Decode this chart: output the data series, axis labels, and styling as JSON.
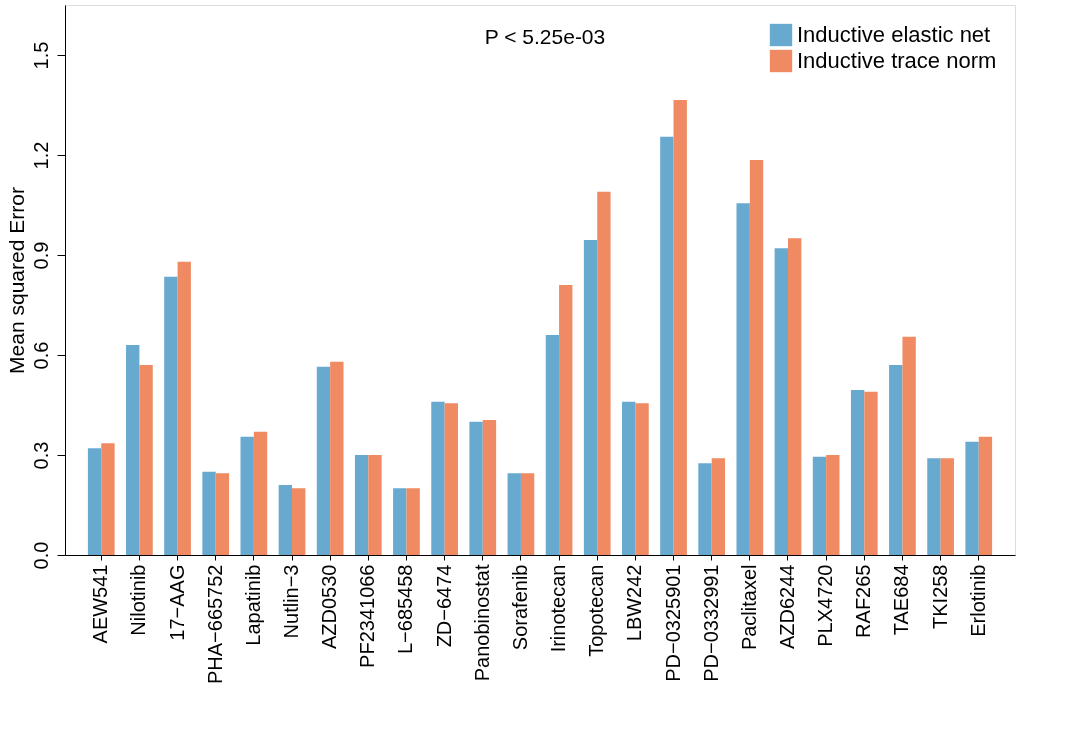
{
  "chart_data": {
    "type": "bar",
    "ylabel": "Mean squared Error",
    "categories": [
      "AEW541",
      "Nilotinib",
      "17−AAG",
      "PHA−665752",
      "Lapatinib",
      "Nutlin−3",
      "AZD0530",
      "PF2341066",
      "L−685458",
      "ZD−6474",
      "Panobinostat",
      "Sorafenib",
      "Irinotecan",
      "Topotecan",
      "LBW242",
      "PD−0325901",
      "PD−0332991",
      "Paclitaxel",
      "AZD6244",
      "PLX4720",
      "RAF265",
      "TAE684",
      "TKI258",
      "Erlotinib"
    ],
    "series": [
      {
        "name": "Inductive elastic net",
        "color": "#67a9cf",
        "values": [
          0.32,
          0.63,
          0.835,
          0.25,
          0.355,
          0.21,
          0.565,
          0.3,
          0.2,
          0.46,
          0.4,
          0.245,
          0.66,
          0.945,
          0.46,
          1.255,
          0.275,
          1.055,
          0.92,
          0.295,
          0.495,
          0.57,
          0.29,
          0.34
        ]
      },
      {
        "name": "Inductive trace norm",
        "color": "#ef8a62",
        "values": [
          0.335,
          0.57,
          0.88,
          0.245,
          0.37,
          0.2,
          0.58,
          0.3,
          0.2,
          0.455,
          0.405,
          0.245,
          0.81,
          1.09,
          0.455,
          1.365,
          0.29,
          1.185,
          0.95,
          0.3,
          0.49,
          0.655,
          0.29,
          0.355
        ]
      }
    ],
    "ylim": [
      0,
      1.65
    ],
    "yticks": [
      {
        "value": 0,
        "label": "0.0"
      },
      0.3,
      0.6,
      0.9,
      1.2,
      1.5
    ],
    "annotations": [
      "P < 5.25e-03"
    ],
    "legend": "top right",
    "grid": false
  }
}
